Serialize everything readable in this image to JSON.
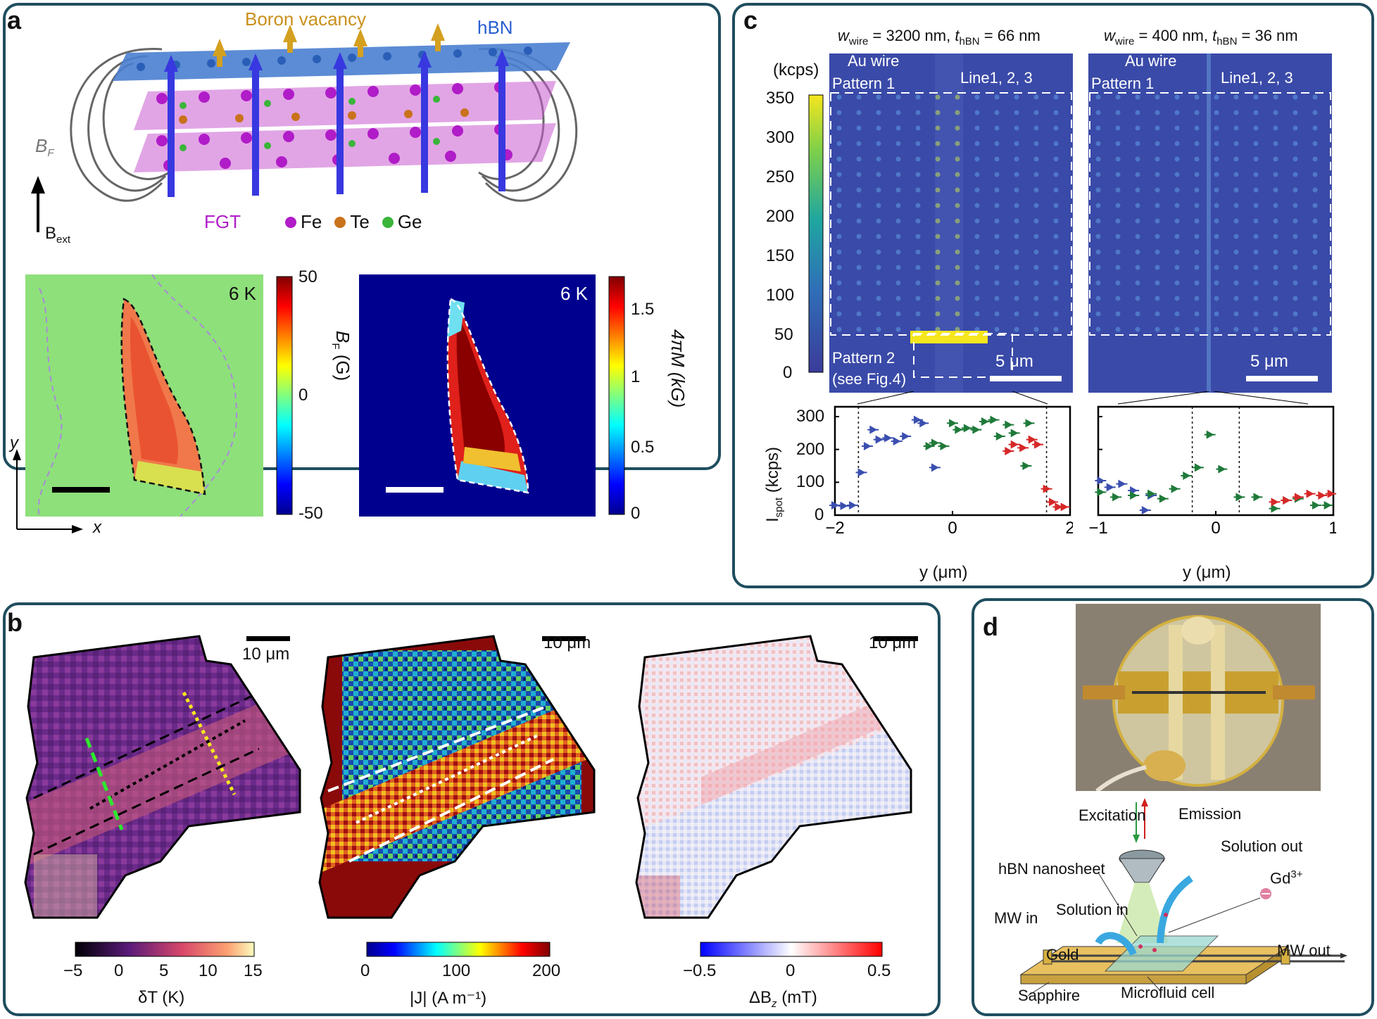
{
  "panel_labels": {
    "a": "a",
    "b": "b",
    "c": "c",
    "d": "d"
  },
  "panel_a": {
    "boron_vacancy": "Boron vacancy",
    "hbn": "hBN",
    "bf_label": "B",
    "bf_sub": "F",
    "bext_label": "B",
    "bext_sub": "ext",
    "fgt": "FGT",
    "legend": [
      {
        "label": "Fe",
        "color": "#b01cc8"
      },
      {
        "label": "Te",
        "color": "#c9721b"
      },
      {
        "label": "Ge",
        "color": "#3ab53a"
      }
    ],
    "map1": {
      "temp": "6 K",
      "cbar_ticks": [
        "50",
        "0",
        "-50"
      ],
      "cbar_label": "B",
      "cbar_label_sub": "F",
      "cbar_unit": "(G)"
    },
    "map2": {
      "temp": "6 K",
      "cbar_ticks": [
        "1.5",
        "1",
        "0.5",
        "0"
      ],
      "cbar_label": "4πM (kG)"
    },
    "axis_y": "y",
    "axis_x": "x"
  },
  "panel_b": {
    "scalebar": "10 μm",
    "cbar1": {
      "ticks": [
        "−5",
        "0",
        "5",
        "10",
        "15"
      ],
      "label": "δT (K)"
    },
    "cbar2": {
      "ticks": [
        "0",
        "100",
        "200"
      ],
      "label": "|J| (A m⁻¹)"
    },
    "cbar3": {
      "ticks": [
        "−0.5",
        "0",
        "0.5"
      ],
      "label": "ΔB",
      "label_sub": "z",
      "label_unit": " (mT)"
    }
  },
  "panel_c": {
    "title_left": {
      "w": "w",
      "w_sub": "wire",
      "w_val": " = 3200 nm, ",
      "t": "t",
      "t_sub": "hBN",
      "t_val": " = 66 nm"
    },
    "title_right": {
      "w": "w",
      "w_sub": "wire",
      "w_val": " = 400 nm, ",
      "t": "t",
      "t_sub": "hBN",
      "t_val": " = 36 nm"
    },
    "unit": "(kcps)",
    "cbar_ticks": [
      "350",
      "300",
      "250",
      "200",
      "150",
      "100",
      "50",
      "0"
    ],
    "au_wire": "Au wire",
    "line123": "Line1, 2, 3",
    "pattern1": "Pattern 1",
    "pattern2": "Pattern 2",
    "pattern2_ref": "(see Fig.4)",
    "scalebar": "5 μm",
    "ylabel": "I",
    "ylabel_sub": "spot",
    "ylabel_unit": " (kcps)",
    "xlabel": "y (μm)"
  },
  "chart_data": [
    {
      "type": "scatter",
      "title": "",
      "xlabel": "y (μm)",
      "ylabel": "I_spot (kcps)",
      "xlim": [
        -2,
        2
      ],
      "ylim": [
        0,
        330
      ],
      "xticks": [
        "−2",
        "0",
        "2"
      ],
      "yticks": [
        "0",
        "100",
        "200",
        "300"
      ],
      "series": [
        {
          "name": "Line 1",
          "color": "#3b4fb0",
          "x": [
            -2.0,
            -1.85,
            -1.7,
            -1.55,
            -1.45,
            -1.35,
            -1.25,
            -1.1,
            -0.95,
            -0.8,
            -0.6,
            -0.5,
            -0.3
          ],
          "y": [
            30,
            28,
            30,
            130,
            210,
            260,
            230,
            235,
            225,
            240,
            290,
            280,
            145
          ]
        },
        {
          "name": "Line 2",
          "color": "#1f7a3a",
          "x": [
            -0.4,
            -0.3,
            -0.15,
            0.0,
            0.1,
            0.25,
            0.4,
            0.55,
            0.7,
            0.8,
            0.95,
            1.05,
            1.25,
            1.3
          ],
          "y": [
            210,
            220,
            210,
            280,
            260,
            265,
            260,
            285,
            290,
            240,
            275,
            250,
            150,
            280
          ]
        },
        {
          "name": "Line 3",
          "color": "#d62828",
          "x": [
            0.95,
            1.05,
            1.2,
            1.35,
            1.45,
            1.6,
            1.7,
            1.8,
            1.9
          ],
          "y": [
            195,
            215,
            205,
            230,
            215,
            80,
            40,
            25,
            25
          ]
        }
      ]
    },
    {
      "type": "scatter",
      "title": "",
      "xlabel": "y (μm)",
      "ylabel": "",
      "xlim": [
        -1,
        1
      ],
      "ylim": [
        0,
        330
      ],
      "xticks": [
        "−1",
        "0",
        "1"
      ],
      "yticks": [],
      "series": [
        {
          "name": "Line 1",
          "color": "#3b4fb0",
          "x": [
            -0.98,
            -0.9,
            -0.8,
            -0.7,
            -0.6,
            -0.55
          ],
          "y": [
            105,
            85,
            95,
            75,
            15,
            60
          ]
        },
        {
          "name": "Line 2",
          "color": "#1f7a3a",
          "x": [
            -0.98,
            -0.85,
            -0.7,
            -0.55,
            -0.45,
            -0.35,
            -0.25,
            -0.15,
            -0.05,
            0.05,
            0.2,
            0.35,
            0.5,
            0.6,
            0.7,
            0.85,
            0.95
          ],
          "y": [
            70,
            55,
            60,
            65,
            50,
            80,
            120,
            145,
            245,
            140,
            55,
            55,
            20,
            45,
            50,
            30,
            30
          ]
        },
        {
          "name": "Line 3",
          "color": "#d62828",
          "x": [
            0.5,
            0.6,
            0.7,
            0.8,
            0.9,
            0.98
          ],
          "y": [
            40,
            45,
            55,
            65,
            60,
            65
          ]
        }
      ]
    }
  ],
  "panel_d": {
    "excitation": "Excitation",
    "emission": "Emission",
    "solution_out": "Solution out",
    "hbn_nanosheet": "hBN nanosheet",
    "gd": "Gd",
    "gd_sup": "3+",
    "mw_in": "MW in",
    "solution_in": "Solution in",
    "gold": "Gold",
    "mw_out": "MW out",
    "sapphire": "Sapphire",
    "microfluid": "Microfluid cell"
  }
}
